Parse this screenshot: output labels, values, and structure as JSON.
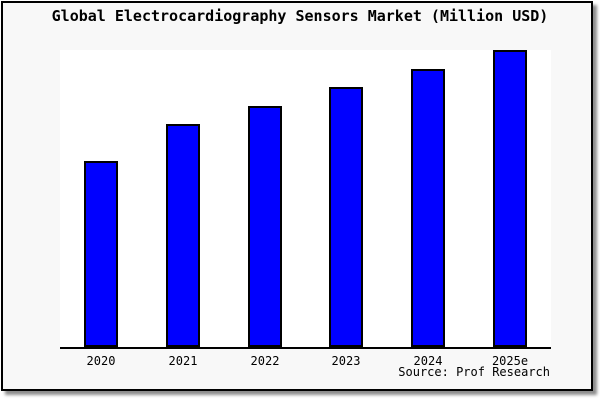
{
  "chart_data": {
    "type": "bar",
    "title": "Global Electrocardiography Sensors Market (Million USD)",
    "categories": [
      "2020",
      "2021",
      "2022",
      "2023",
      "2024",
      "2025e"
    ],
    "values": [
      62.6,
      75.0,
      81.2,
      87.5,
      93.7,
      100.0
    ],
    "xlabel": "",
    "ylabel": "",
    "ylim": [
      0,
      100
    ],
    "grid": false,
    "legend_position": "none",
    "source_note": "Source: Prof Research",
    "colors": {
      "bar_fill": "#0000ff",
      "bar_edge": "#000000",
      "figure_background": "#f8f8f8",
      "plot_background": "#ffffff",
      "axis_line": "#000000",
      "title_text": "#000000"
    },
    "note": "No y-axis shown; values are bar heights relative to the tallest bar (2025e = 100)."
  }
}
